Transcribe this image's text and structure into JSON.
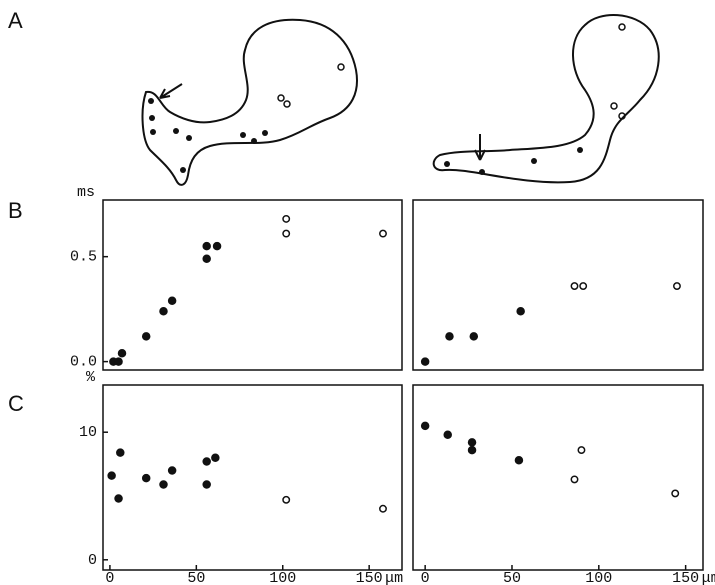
{
  "panel_labels": [
    "A",
    "B",
    "C"
  ],
  "chart_data": [
    {
      "type": "scatter",
      "ylabel": "ms",
      "xlim": [
        -4,
        169
      ],
      "ylim": [
        -0.04,
        0.77
      ],
      "yticks": [
        {
          "value": 0,
          "label": "0.0"
        },
        0.5
      ],
      "series": [
        {
          "color": "#111",
          "filled": true,
          "x": [
            2,
            5,
            7,
            21,
            31,
            36,
            56,
            56,
            62
          ],
          "values": [
            0,
            0,
            0.04,
            0.12,
            0.24,
            0.29,
            0.55,
            0.49,
            0.55
          ]
        },
        {
          "color": "#111",
          "filled": false,
          "x": [
            102,
            102,
            158
          ],
          "values": [
            0.68,
            0.61,
            0.61
          ]
        }
      ]
    },
    {
      "type": "scatter",
      "xlim": [
        -7,
        160
      ],
      "ylim": [
        -0.04,
        0.77
      ],
      "series": [
        {
          "color": "#111",
          "filled": true,
          "x": [
            0,
            14,
            28,
            55
          ],
          "values": [
            0,
            0.12,
            0.12,
            0.24
          ]
        },
        {
          "color": "#111",
          "filled": false,
          "x": [
            86,
            91,
            145
          ],
          "values": [
            0.36,
            0.36,
            0.36
          ]
        }
      ]
    },
    {
      "type": "scatter",
      "ylabel": "%",
      "xlabel": "μm",
      "xlim": [
        -4,
        169
      ],
      "ylim": [
        -0.8,
        13.7
      ],
      "yticks": [
        0,
        10
      ],
      "xticks": [
        0,
        50,
        100,
        150
      ],
      "series": [
        {
          "color": "#111",
          "filled": true,
          "x": [
            1,
            5,
            6,
            21,
            31,
            36,
            56,
            56,
            61
          ],
          "values": [
            6.6,
            4.8,
            8.4,
            6.4,
            5.9,
            7.0,
            7.7,
            5.9,
            8.0
          ]
        },
        {
          "color": "#111",
          "filled": false,
          "x": [
            102,
            158
          ],
          "values": [
            4.7,
            4.0
          ]
        }
      ]
    },
    {
      "type": "scatter",
      "xlabel": "μm",
      "xlim": [
        -7,
        160
      ],
      "ylim": [
        -0.8,
        13.7
      ],
      "xticks": [
        0,
        50,
        100,
        150
      ],
      "series": [
        {
          "color": "#111",
          "filled": true,
          "x": [
            0,
            13,
            27,
            27,
            54
          ],
          "values": [
            10.5,
            9.8,
            9.2,
            8.6,
            7.8
          ]
        },
        {
          "color": "#111",
          "filled": false,
          "x": [
            90,
            86,
            144
          ],
          "values": [
            8.6,
            6.3,
            5.2
          ]
        }
      ]
    }
  ]
}
